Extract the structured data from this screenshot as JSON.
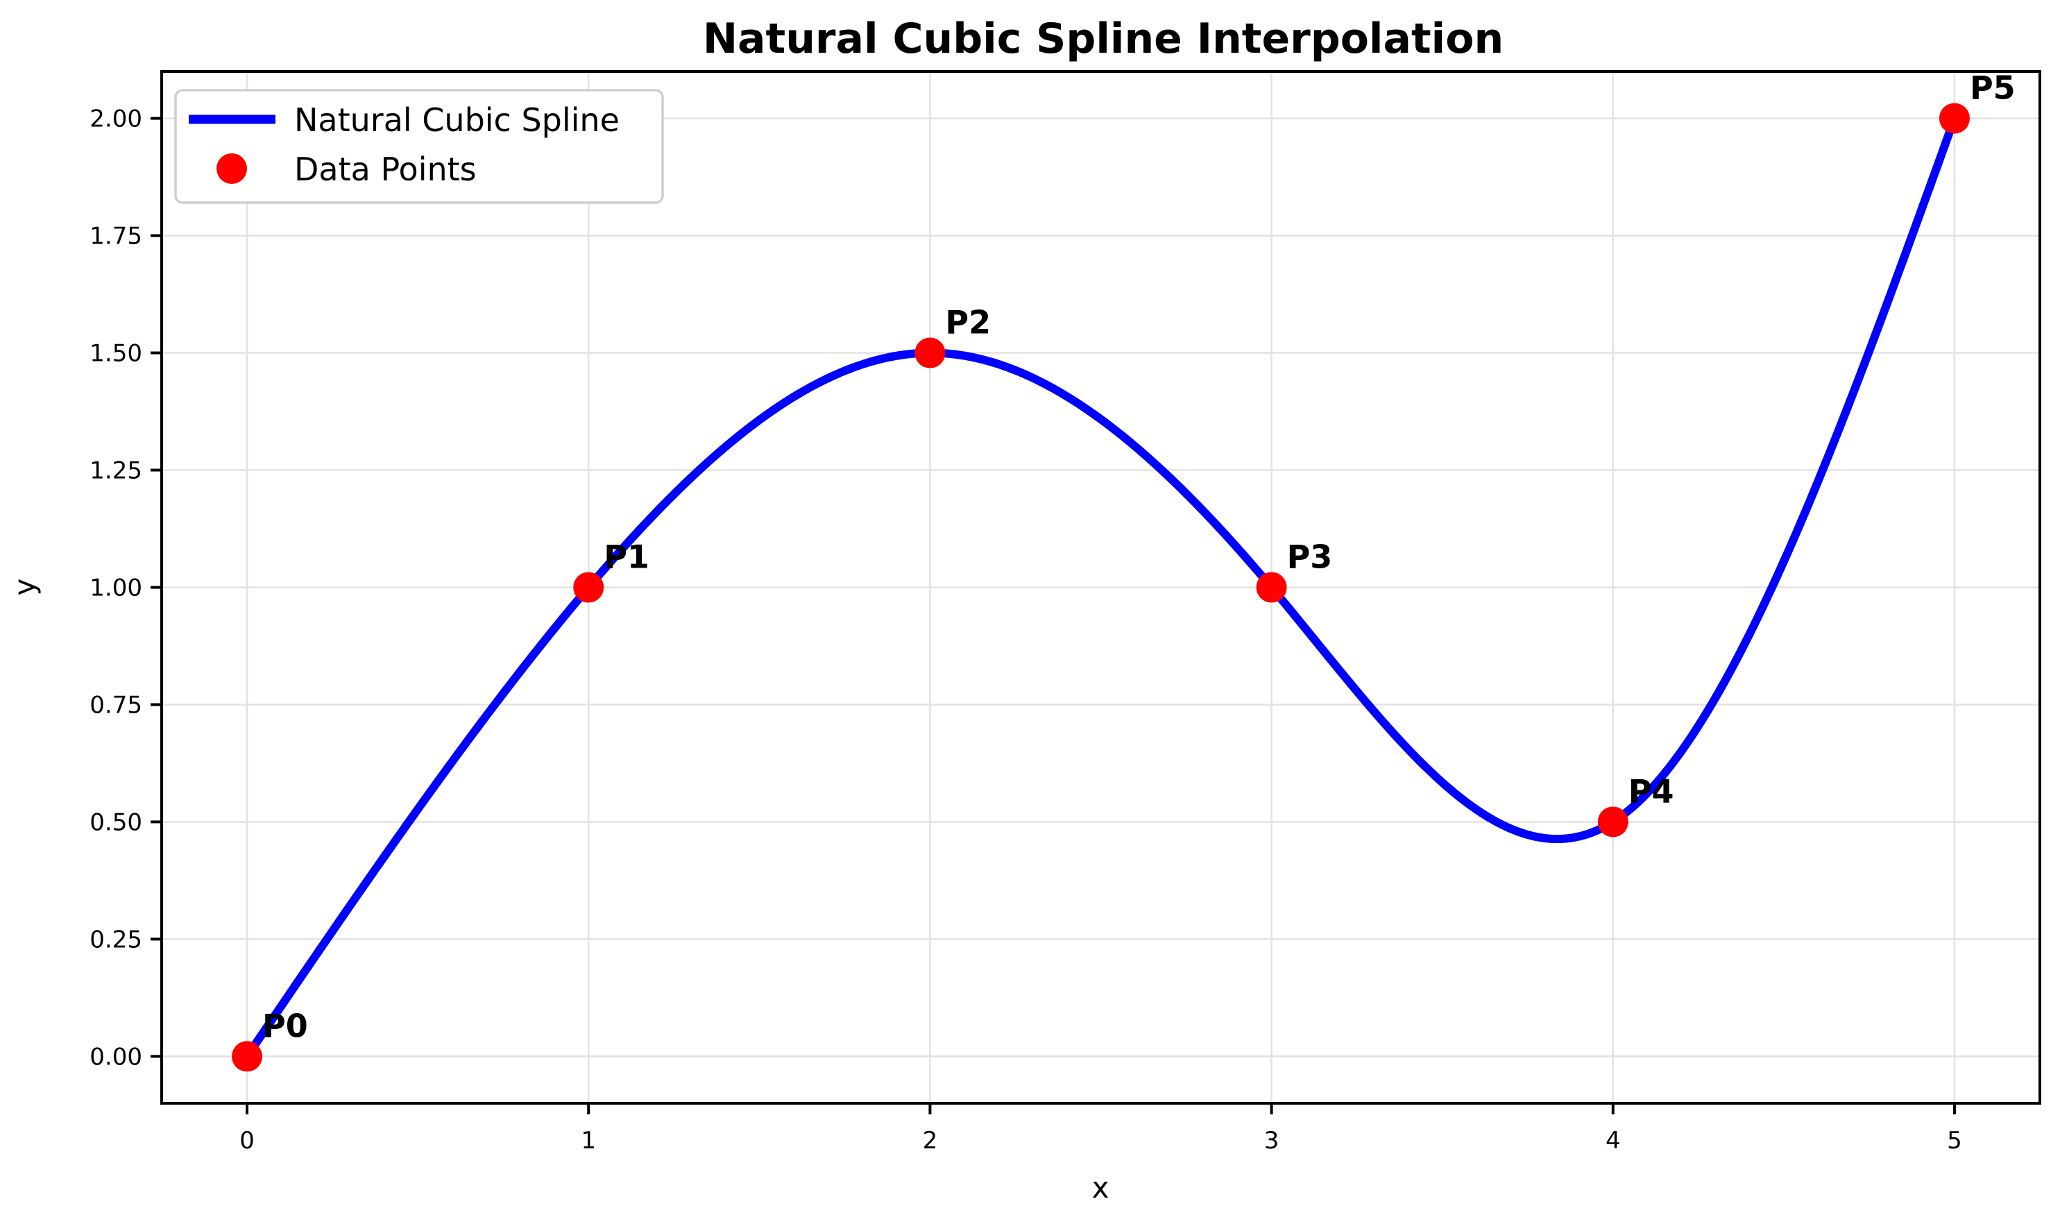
{
  "chart_data": {
    "type": "line",
    "title": "Natural Cubic Spline Interpolation",
    "xlabel": "x",
    "ylabel": "y",
    "xlim": [
      -0.25,
      5.25
    ],
    "ylim": [
      -0.1,
      2.1
    ],
    "grid": true,
    "xticks": {
      "values": [
        0,
        1,
        2,
        3,
        4,
        5
      ],
      "labels": [
        "0",
        "1",
        "2",
        "3",
        "4",
        "5"
      ]
    },
    "yticks": {
      "values": [
        0.0,
        0.25,
        0.5,
        0.75,
        1.0,
        1.25,
        1.5,
        1.75,
        2.0
      ],
      "labels": [
        "0.00",
        "0.25",
        "0.50",
        "0.75",
        "1.00",
        "1.25",
        "1.50",
        "1.75",
        "2.00"
      ]
    },
    "series": [
      {
        "name": "Natural Cubic Spline",
        "type": "natural-cubic-spline",
        "color": "#0000ff",
        "knots_x": [
          0,
          1,
          2,
          3,
          4,
          5
        ],
        "knots_y": [
          0.0,
          1.0,
          1.5,
          1.0,
          0.5,
          2.0
        ]
      },
      {
        "name": "Data Points",
        "type": "scatter",
        "color": "#ff0000",
        "x": [
          0,
          1,
          2,
          3,
          4,
          5
        ],
        "y": [
          0.0,
          1.0,
          1.5,
          1.0,
          0.5,
          2.0
        ]
      }
    ],
    "annotations": [
      {
        "text": "P0",
        "x": 0,
        "y": 0.0
      },
      {
        "text": "P1",
        "x": 1,
        "y": 1.0
      },
      {
        "text": "P2",
        "x": 2,
        "y": 1.5
      },
      {
        "text": "P3",
        "x": 3,
        "y": 1.0
      },
      {
        "text": "P4",
        "x": 4,
        "y": 0.5
      },
      {
        "text": "P5",
        "x": 5,
        "y": 2.0
      }
    ],
    "legend": {
      "position": "upper left",
      "entries": [
        {
          "label": "Natural Cubic Spline",
          "type": "line",
          "color": "#0000ff"
        },
        {
          "label": "Data Points",
          "type": "marker",
          "color": "#ff0000"
        }
      ]
    }
  },
  "colors": {
    "line": "#0000ff",
    "marker": "#ff0000",
    "grid": "#e2e2e2",
    "spine": "#000000",
    "legend_edge": "#cfcfcf",
    "background": "#ffffff",
    "text": "#000000"
  }
}
